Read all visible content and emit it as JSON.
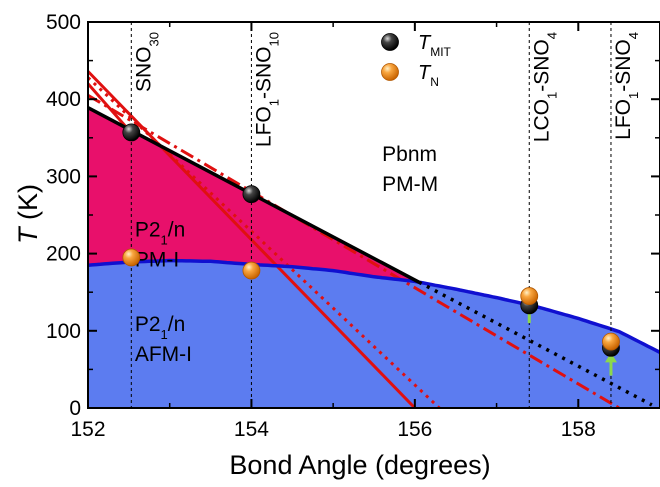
{
  "chart_data": {
    "type": "scatter",
    "xlabel": "Bond Angle (degrees)",
    "ylabel": {
      "italic": "T",
      "rest": " (K)"
    },
    "xlim": [
      152,
      159
    ],
    "ylim": [
      0,
      500
    ],
    "xticks": [
      "152",
      "154",
      "156",
      "158"
    ],
    "xtick_values": [
      152,
      154,
      156,
      158
    ],
    "yticks": [
      "0",
      "100",
      "200",
      "300",
      "400",
      "500"
    ],
    "ytick_values": [
      0,
      100,
      200,
      300,
      400,
      500
    ],
    "grid": false,
    "legend_position": "top-center",
    "legend": [
      {
        "main": "T",
        "sub": "MIT",
        "marker": "black-sphere"
      },
      {
        "main": "T",
        "sub": "N",
        "marker": "orange-sphere"
      }
    ],
    "sample_lines": [
      {
        "x": 152.53,
        "parts": [
          {
            "t": "SNO",
            "s": false
          },
          {
            "t": "30",
            "s": true
          }
        ]
      },
      {
        "x": 154.0,
        "parts": [
          {
            "t": "LFO",
            "s": false
          },
          {
            "t": "1",
            "s": true
          },
          {
            "t": "-SNO",
            "s": false
          },
          {
            "t": "10",
            "s": true
          }
        ]
      },
      {
        "x": 157.4,
        "parts": [
          {
            "t": "LCO",
            "s": false
          },
          {
            "t": "1",
            "s": true
          },
          {
            "t": "-SNO",
            "s": false
          },
          {
            "t": "4",
            "s": true
          }
        ]
      },
      {
        "x": 158.4,
        "parts": [
          {
            "t": "LFO",
            "s": false
          },
          {
            "t": "1",
            "s": true
          },
          {
            "t": "-SNO",
            "s": false
          },
          {
            "t": "4",
            "s": true
          }
        ]
      }
    ],
    "regions": [
      {
        "label_lines": [
          [
            {
              "t": "P2",
              "s": false
            },
            {
              "t": "1",
              "s": true
            },
            {
              "t": "/n",
              "s": false
            }
          ],
          [
            {
              "t": "PM-I",
              "s": false
            }
          ]
        ],
        "at": [
          152.5,
          222
        ],
        "color": "#E8106B"
      },
      {
        "label_lines": [
          [
            {
              "t": "P2",
              "s": false
            },
            {
              "t": "1",
              "s": true
            },
            {
              "t": "/n",
              "s": false
            }
          ],
          [
            {
              "t": "AFM-I",
              "s": false
            }
          ]
        ],
        "at": [
          152.5,
          100
        ],
        "color": "#5C7CF0"
      },
      {
        "label_lines": [
          [
            {
              "t": "Pbnm",
              "s": false
            }
          ],
          [
            {
              "t": "PM-M",
              "s": false
            }
          ]
        ],
        "at": [
          155.6,
          320
        ],
        "color": "#ffffff"
      }
    ],
    "series": [
      {
        "name": "T_MIT",
        "color": "#111111",
        "points": [
          [
            152.53,
            357
          ],
          [
            154.0,
            277
          ],
          [
            157.4,
            133
          ],
          [
            158.4,
            78
          ]
        ]
      },
      {
        "name": "T_N",
        "color": "#F7941D",
        "points": [
          [
            152.53,
            195
          ],
          [
            154.0,
            178
          ],
          [
            157.4,
            145
          ],
          [
            158.4,
            86
          ]
        ]
      }
    ],
    "mit_boundary": {
      "x": [
        152,
        156.05
      ],
      "y": [
        389,
        163
      ],
      "color": "#000000"
    },
    "mit_extrapolation": {
      "x": [
        156.05,
        158.9
      ],
      "y": [
        163,
        4
      ],
      "color": "#000000",
      "style": "dotted"
    },
    "neel_curve": {
      "x": [
        152,
        152.5,
        153,
        153.5,
        154,
        154.5,
        155,
        155.5,
        156,
        156.5,
        157,
        157.5,
        158,
        158.5,
        159
      ],
      "y": [
        185,
        189,
        191,
        190,
        186,
        183,
        178,
        170,
        164,
        154,
        143,
        131,
        116,
        99,
        72
      ],
      "color": "#1010D0"
    },
    "red_fits": [
      {
        "style": "solid",
        "x": [
          152,
          156
        ],
        "y": [
          436,
          0
        ],
        "color": "#E01010"
      },
      {
        "style": "dotted",
        "x": [
          152,
          156.3
        ],
        "y": [
          428,
          0
        ],
        "color": "#E01010"
      },
      {
        "style": "dashdot",
        "x": [
          152,
          158.5
        ],
        "y": [
          405,
          0
        ],
        "color": "#E01010"
      },
      {
        "style": "solid",
        "x": [
          152,
          152.5
        ],
        "y": [
          420,
          360
        ],
        "color": "#E01010"
      }
    ],
    "arrows": [
      {
        "x": 157.4,
        "y_from": 110,
        "y_to": 140,
        "color": "#8CD84C"
      },
      {
        "x": 158.4,
        "y_from": 42,
        "y_to": 72,
        "color": "#8CD84C"
      }
    ]
  }
}
